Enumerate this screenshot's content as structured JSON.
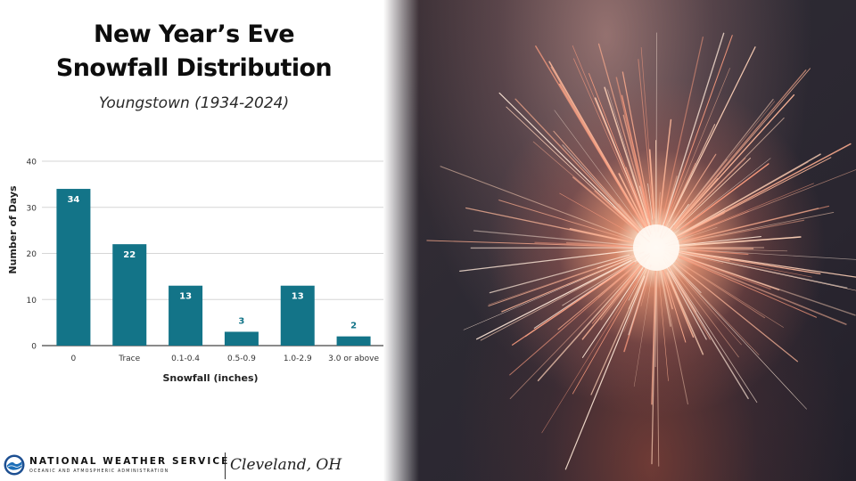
{
  "header": {
    "title_line1": "New Year’s Eve",
    "title_line2": "Snowfall Distribution",
    "subtitle": "Youngstown (1934-2024)"
  },
  "chart_data": {
    "type": "bar",
    "categories": [
      "0",
      "Trace",
      "0.1-0.4",
      "0.5-0.9",
      "1.0-2.9",
      "3.0 or above"
    ],
    "values": [
      34,
      22,
      13,
      3,
      13,
      2
    ],
    "data_labels": [
      "34",
      "22",
      "13",
      "3",
      "13",
      "2"
    ],
    "xlabel": "Snowfall (inches)",
    "ylabel": "Number of Days",
    "ylim": [
      0,
      40
    ],
    "yticks": [
      "0",
      "10",
      "20",
      "30",
      "40"
    ],
    "grid": true,
    "bar_color": "#137488",
    "label_inside_color": "#ffffff",
    "label_outside_color": "#137488"
  },
  "footer": {
    "agency": "NATIONAL WEATHER SERVICE",
    "department": "OCEANIC AND ATMOSPHERIC ADMINISTRATION",
    "office": "Cleveland, OH",
    "logo_icon": "noaa-logo-icon"
  },
  "photo": {
    "subject_icon": "sparkler-photo"
  }
}
